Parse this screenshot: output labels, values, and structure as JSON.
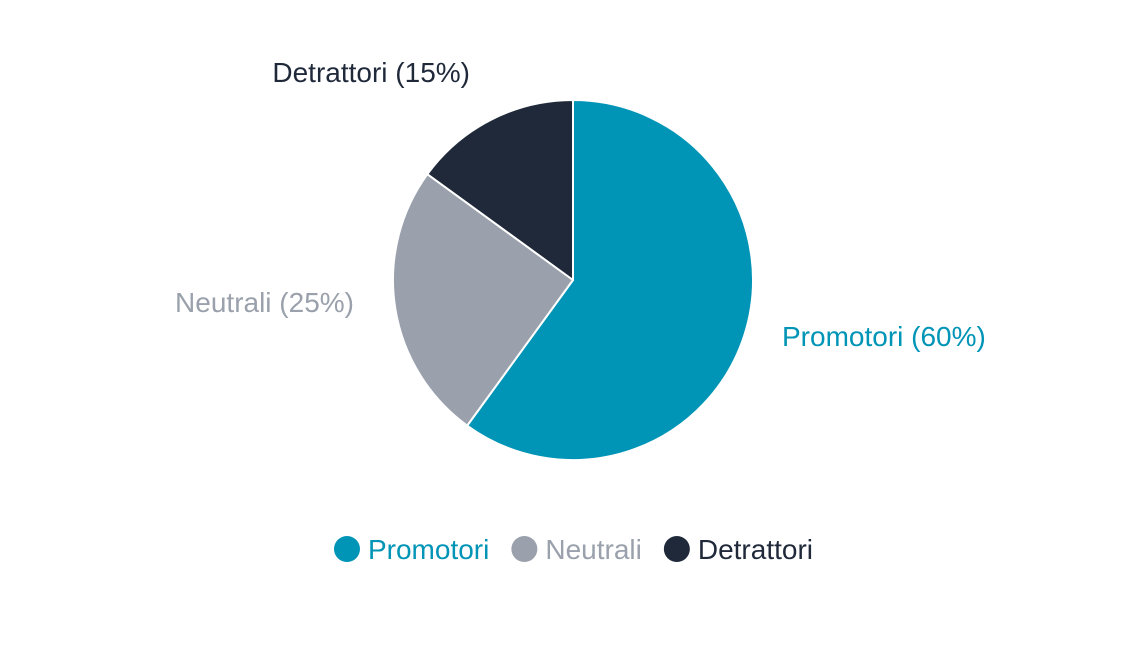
{
  "chart_data": {
    "type": "pie",
    "categories": [
      "Promotori",
      "Neutrali",
      "Detrattori"
    ],
    "values": [
      60,
      25,
      15
    ],
    "data_labels": [
      "Promotori (60%)",
      "Neutrali (25%)",
      "Detrattori (15%)"
    ],
    "colors": [
      "#0094b6",
      "#9aa1ac",
      "#1f293a"
    ],
    "legend": {
      "position": "bottom",
      "entries": [
        "Promotori",
        "Neutrali",
        "Detrattori"
      ]
    },
    "title": ""
  }
}
